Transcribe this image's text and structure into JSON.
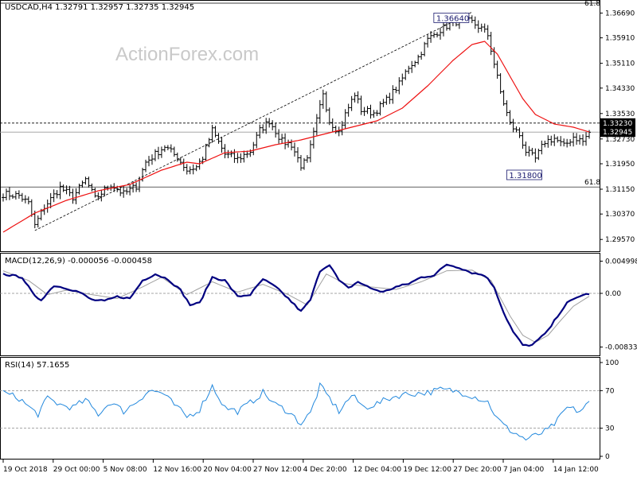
{
  "chart_data": {
    "type": "candlestick",
    "title": "USDCAD,H4  1.32791 1.32957 1.32735 1.32945",
    "watermark": "ActionForex.com",
    "colors": {
      "bars": "#000000",
      "ma": "#ee1111",
      "macd": "#000080",
      "signal": "#a0a0a0",
      "rsi": "#2288dd",
      "grid": "#000000"
    },
    "x_ticks": [
      "19 Oct 2018",
      "29 Oct 00:00",
      "5 Nov 08:00",
      "12 Nov 16:00",
      "20 Nov 04:00",
      "27 Nov 12:00",
      "4 Dec 20:00",
      "12 Dec 04:00",
      "19 Dec 12:00",
      "27 Dec 20:00",
      "7 Jan 04:00",
      "14 Jan 12:00"
    ],
    "price_panel": {
      "y_ticks": [
        "1.36690",
        "1.35910",
        "1.35110",
        "1.34330",
        "1.33530",
        "1.32730",
        "1.31950",
        "1.31150",
        "1.30370",
        "1.29570"
      ],
      "ylim": [
        1.2925,
        1.3705
      ],
      "current_price": "1.32945",
      "level_line_value": "1.33230",
      "fib_level": "61.8",
      "fib_levels": [
        1.3738,
        1.3122
      ],
      "annotations": [
        {
          "text": "1.36640",
          "x_index": 146,
          "value": 1.3664
        },
        {
          "text": "1.31800",
          "x_index": 165,
          "value": 1.318
        }
      ],
      "waypoints": [
        [
          0,
          1.31
        ],
        [
          5,
          1.3095
        ],
        [
          8,
          1.307
        ],
        [
          10,
          1.3
        ],
        [
          13,
          1.306
        ],
        [
          18,
          1.312
        ],
        [
          22,
          1.309
        ],
        [
          26,
          1.3145
        ],
        [
          29,
          1.3085
        ],
        [
          34,
          1.313
        ],
        [
          38,
          1.31
        ],
        [
          42,
          1.3125
        ],
        [
          45,
          1.32
        ],
        [
          51,
          1.325
        ],
        [
          55,
          1.3215
        ],
        [
          58,
          1.3175
        ],
        [
          61,
          1.3185
        ],
        [
          63,
          1.3215
        ],
        [
          66,
          1.33
        ],
        [
          70,
          1.3225
        ],
        [
          74,
          1.321
        ],
        [
          78,
          1.3235
        ],
        [
          81,
          1.33
        ],
        [
          84,
          1.333
        ],
        [
          88,
          1.3265
        ],
        [
          91,
          1.3255
        ],
        [
          94,
          1.319
        ],
        [
          96,
          1.3205
        ],
        [
          99,
          1.333
        ],
        [
          101,
          1.342
        ],
        [
          103,
          1.333
        ],
        [
          106,
          1.3295
        ],
        [
          108,
          1.335
        ],
        [
          111,
          1.3415
        ],
        [
          113,
          1.3365
        ],
        [
          117,
          1.3355
        ],
        [
          121,
          1.3395
        ],
        [
          125,
          1.3445
        ],
        [
          128,
          1.35
        ],
        [
          131,
          1.353
        ],
        [
          134,
          1.3585
        ],
        [
          137,
          1.361
        ],
        [
          141,
          1.3635
        ],
        [
          145,
          1.365
        ],
        [
          148,
          1.364
        ],
        [
          151,
          1.362
        ],
        [
          153,
          1.36
        ],
        [
          155,
          1.351
        ],
        [
          157,
          1.342
        ],
        [
          160,
          1.332
        ],
        [
          163,
          1.3285
        ],
        [
          165,
          1.3235
        ],
        [
          168,
          1.321
        ],
        [
          171,
          1.3265
        ],
        [
          174,
          1.3275
        ],
        [
          177,
          1.325
        ],
        [
          180,
          1.328
        ],
        [
          183,
          1.3265
        ],
        [
          185,
          1.3294
        ]
      ],
      "ma_waypoints": [
        [
          0,
          1.298
        ],
        [
          10,
          1.304
        ],
        [
          20,
          1.308
        ],
        [
          30,
          1.311
        ],
        [
          40,
          1.313
        ],
        [
          50,
          1.3175
        ],
        [
          58,
          1.32
        ],
        [
          62,
          1.3195
        ],
        [
          70,
          1.323
        ],
        [
          78,
          1.3235
        ],
        [
          86,
          1.3255
        ],
        [
          94,
          1.327
        ],
        [
          102,
          1.329
        ],
        [
          110,
          1.331
        ],
        [
          118,
          1.333
        ],
        [
          126,
          1.337
        ],
        [
          134,
          1.344
        ],
        [
          142,
          1.352
        ],
        [
          148,
          1.357
        ],
        [
          152,
          1.358
        ],
        [
          156,
          1.354
        ],
        [
          160,
          1.347
        ],
        [
          164,
          1.34
        ],
        [
          168,
          1.335
        ],
        [
          174,
          1.332
        ],
        [
          180,
          1.331
        ],
        [
          185,
          1.3295
        ]
      ]
    },
    "macd_panel": {
      "title": "MACD(12,26,9) -0.000056 -0.000458",
      "y_ticks": [
        "0.004998",
        "0.00",
        "-0.00833"
      ],
      "ylim": [
        -0.0095,
        0.0058
      ],
      "macd_waypoints": [
        [
          0,
          0.003
        ],
        [
          6,
          0.0025
        ],
        [
          10,
          -0.0005
        ],
        [
          12,
          -0.001
        ],
        [
          16,
          0.0012
        ],
        [
          20,
          0.0008
        ],
        [
          24,
          0.0002
        ],
        [
          28,
          -0.001
        ],
        [
          32,
          -0.0012
        ],
        [
          36,
          -0.0005
        ],
        [
          40,
          -0.0008
        ],
        [
          44,
          0.002
        ],
        [
          48,
          0.003
        ],
        [
          52,
          0.0022
        ],
        [
          56,
          0.0005
        ],
        [
          59,
          -0.0018
        ],
        [
          62,
          -0.0015
        ],
        [
          66,
          0.0025
        ],
        [
          70,
          0.002
        ],
        [
          74,
          -0.0005
        ],
        [
          78,
          -0.0002
        ],
        [
          82,
          0.0022
        ],
        [
          86,
          0.001
        ],
        [
          90,
          -0.0008
        ],
        [
          94,
          -0.0028
        ],
        [
          97,
          -0.001
        ],
        [
          100,
          0.0035
        ],
        [
          103,
          0.0045
        ],
        [
          106,
          0.002
        ],
        [
          109,
          0.0008
        ],
        [
          112,
          0.0018
        ],
        [
          116,
          0.0008
        ],
        [
          120,
          0.0002
        ],
        [
          124,
          0.001
        ],
        [
          128,
          0.0015
        ],
        [
          132,
          0.0025
        ],
        [
          136,
          0.0028
        ],
        [
          140,
          0.0045
        ],
        [
          144,
          0.004
        ],
        [
          148,
          0.0032
        ],
        [
          152,
          0.0028
        ],
        [
          155,
          0.001
        ],
        [
          158,
          -0.003
        ],
        [
          161,
          -0.006
        ],
        [
          164,
          -0.008
        ],
        [
          166,
          -0.0082
        ],
        [
          169,
          -0.0072
        ],
        [
          172,
          -0.0058
        ],
        [
          175,
          -0.0035
        ],
        [
          178,
          -0.0015
        ],
        [
          182,
          -0.0004
        ],
        [
          185,
          -5.6e-05
        ]
      ],
      "signal_waypoints": [
        [
          0,
          0.0035
        ],
        [
          8,
          0.002
        ],
        [
          14,
          -0.0002
        ],
        [
          20,
          0.0005
        ],
        [
          28,
          -0.0002
        ],
        [
          36,
          -0.0008
        ],
        [
          44,
          0.001
        ],
        [
          50,
          0.0025
        ],
        [
          58,
          -0.0002
        ],
        [
          66,
          0.0018
        ],
        [
          74,
          0.0002
        ],
        [
          82,
          0.0014
        ],
        [
          90,
          -0.0002
        ],
        [
          96,
          -0.0018
        ],
        [
          102,
          0.003
        ],
        [
          108,
          0.0015
        ],
        [
          116,
          0.001
        ],
        [
          124,
          0.0006
        ],
        [
          132,
          0.0018
        ],
        [
          140,
          0.0035
        ],
        [
          148,
          0.0036
        ],
        [
          154,
          0.002
        ],
        [
          160,
          -0.0035
        ],
        [
          164,
          -0.0065
        ],
        [
          168,
          -0.0076
        ],
        [
          172,
          -0.0065
        ],
        [
          176,
          -0.0042
        ],
        [
          180,
          -0.002
        ],
        [
          185,
          -0.000458
        ]
      ]
    },
    "rsi_panel": {
      "title": "RSI(14) 57.1655",
      "y_ticks": [
        "100",
        "70",
        "30",
        "0"
      ],
      "ylim": [
        0,
        100
      ],
      "levels": [
        70,
        30
      ],
      "waypoints": [
        [
          0,
          68
        ],
        [
          5,
          62
        ],
        [
          9,
          50
        ],
        [
          11,
          45
        ],
        [
          14,
          62
        ],
        [
          18,
          55
        ],
        [
          22,
          52
        ],
        [
          26,
          60
        ],
        [
          30,
          45
        ],
        [
          34,
          58
        ],
        [
          38,
          48
        ],
        [
          42,
          58
        ],
        [
          46,
          70
        ],
        [
          50,
          68
        ],
        [
          54,
          55
        ],
        [
          58,
          42
        ],
        [
          62,
          50
        ],
        [
          66,
          75
        ],
        [
          70,
          52
        ],
        [
          74,
          48
        ],
        [
          78,
          57
        ],
        [
          82,
          68
        ],
        [
          86,
          55
        ],
        [
          90,
          48
        ],
        [
          94,
          35
        ],
        [
          97,
          46
        ],
        [
          100,
          75
        ],
        [
          103,
          62
        ],
        [
          106,
          48
        ],
        [
          110,
          65
        ],
        [
          114,
          52
        ],
        [
          118,
          56
        ],
        [
          122,
          62
        ],
        [
          126,
          66
        ],
        [
          130,
          67
        ],
        [
          134,
          68
        ],
        [
          138,
          71
        ],
        [
          142,
          70
        ],
        [
          146,
          67
        ],
        [
          150,
          62
        ],
        [
          153,
          58
        ],
        [
          156,
          40
        ],
        [
          159,
          30
        ],
        [
          162,
          24
        ],
        [
          165,
          18
        ],
        [
          168,
          22
        ],
        [
          172,
          28
        ],
        [
          175,
          38
        ],
        [
          178,
          52
        ],
        [
          182,
          48
        ],
        [
          185,
          57
        ]
      ]
    }
  }
}
